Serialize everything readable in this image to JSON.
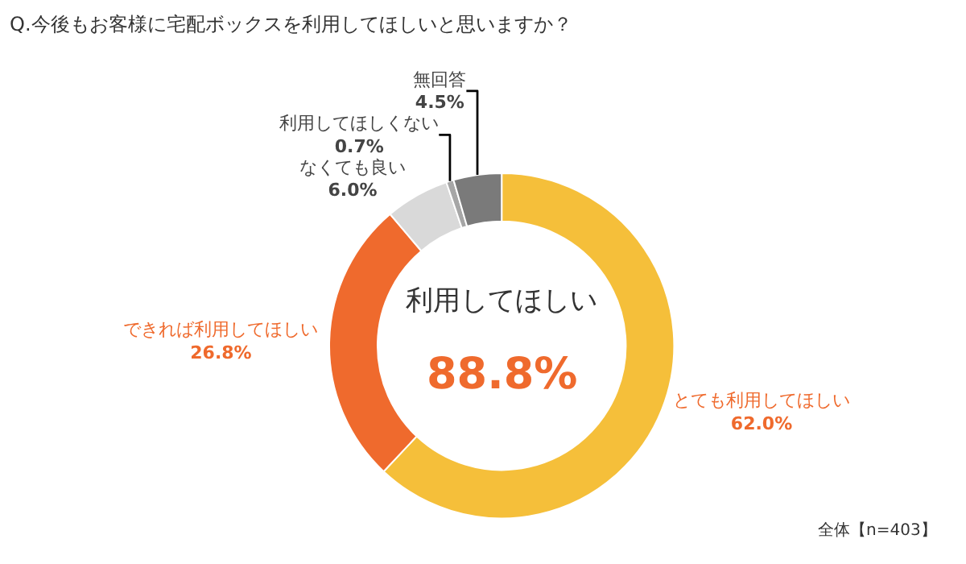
{
  "chart_data": {
    "type": "donut",
    "title": "Q.今後もお客様に宅配ボックスを利用してほしいと思いますか？",
    "categories": [
      "とても利用してほしい",
      "できれば利用してほしい",
      "なくても良い",
      "利用してほしくない",
      "無回答"
    ],
    "values": [
      62.0,
      26.8,
      6.0,
      0.7,
      4.5
    ],
    "colors": [
      "#f5bf3a",
      "#ef6a2d",
      "#d9d9d9",
      "#a6a6a6",
      "#7a7a7a"
    ],
    "value_labels": [
      "62.0%",
      "26.8%",
      "6.0%",
      "0.7%",
      "4.5%"
    ],
    "annotations": [
      "利用してほしい",
      "88.8%",
      "全体【n=403】"
    ],
    "legend": false
  }
}
